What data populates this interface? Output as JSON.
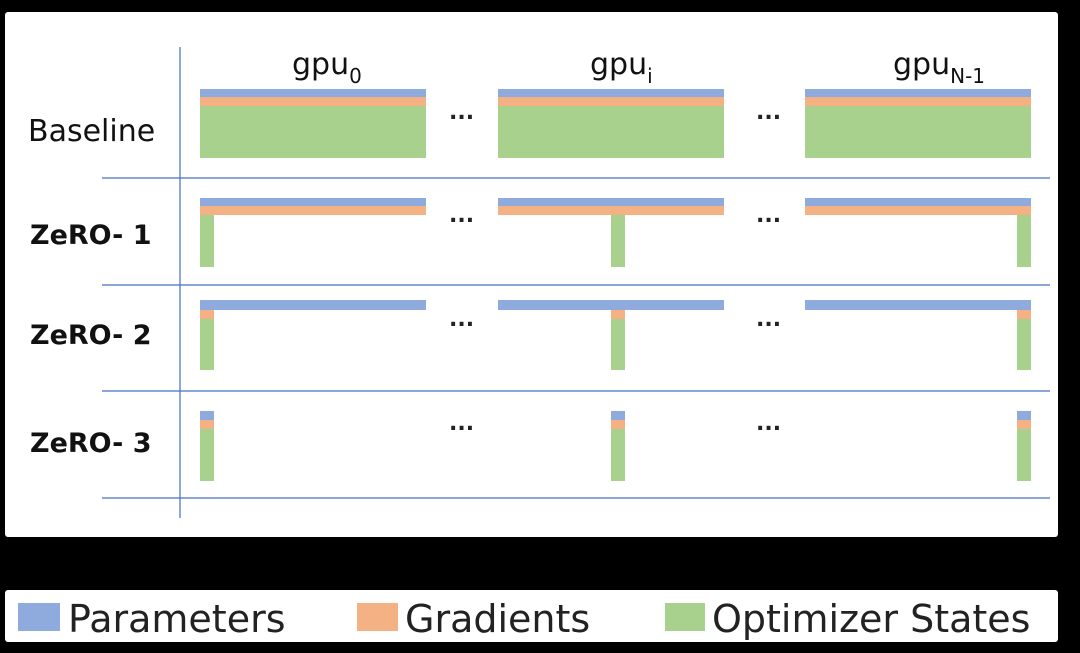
{
  "columns": [
    {
      "base": "gpu",
      "sub": "0"
    },
    {
      "base": "gpu",
      "sub": "i"
    },
    {
      "base": "gpu",
      "sub": "N-1"
    }
  ],
  "ellipsis": "...",
  "rows": [
    "Baseline",
    "ZeRO- 1",
    "ZeRO- 2",
    "ZeRO- 3"
  ],
  "legend": [
    "Parameters",
    "Gradients",
    "Optimizer States"
  ]
}
